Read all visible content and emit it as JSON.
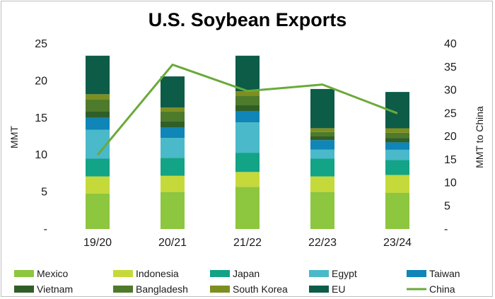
{
  "chart_data": {
    "type": "bar",
    "stacked": true,
    "title": "U.S. Soybean Exports",
    "categories": [
      "19/20",
      "20/21",
      "21/22",
      "22/23",
      "23/24"
    ],
    "ylabel": "MMT",
    "y2label": "MMT to China",
    "ylim": [
      0,
      25
    ],
    "y2lim": [
      0,
      40
    ],
    "yticks": [
      "-",
      "5",
      "10",
      "15",
      "20",
      "25"
    ],
    "y2ticks": [
      "-",
      "5",
      "10",
      "15",
      "20",
      "25",
      "30",
      "35",
      "40"
    ],
    "grid": false,
    "legend_position": "bottom",
    "series": [
      {
        "name": "Mexico",
        "color": "#8dc63f",
        "values": [
          4.8,
          5.0,
          5.7,
          5.0,
          4.9
        ]
      },
      {
        "name": "Indonesia",
        "color": "#c5d93a",
        "values": [
          2.3,
          2.2,
          2.0,
          2.1,
          2.4
        ]
      },
      {
        "name": "Japan",
        "color": "#13a386",
        "values": [
          2.4,
          2.4,
          2.6,
          2.4,
          2.0
        ]
      },
      {
        "name": "Egypt",
        "color": "#4ab9c9",
        "values": [
          3.9,
          2.7,
          4.1,
          1.2,
          1.4
        ]
      },
      {
        "name": "Taiwan",
        "color": "#0f85b8",
        "values": [
          1.6,
          1.4,
          1.5,
          1.3,
          1.0
        ]
      },
      {
        "name": "Vietnam",
        "color": "#2f5f28",
        "values": [
          0.9,
          0.8,
          0.8,
          0.5,
          0.6
        ]
      },
      {
        "name": "Bangladesh",
        "color": "#4e7a2b",
        "values": [
          1.6,
          1.4,
          1.3,
          0.6,
          0.7
        ]
      },
      {
        "name": "South Korea",
        "color": "#7e8f20",
        "values": [
          0.7,
          0.5,
          0.6,
          0.5,
          0.6
        ]
      },
      {
        "name": "EU",
        "color": "#0d5c48",
        "values": [
          5.2,
          4.2,
          4.8,
          5.3,
          4.9
        ]
      },
      {
        "name": "China",
        "color": "#6aaa3a",
        "type": "line",
        "axis": "right",
        "values": [
          16.0,
          35.5,
          29.8,
          31.2,
          25.0
        ]
      }
    ]
  }
}
